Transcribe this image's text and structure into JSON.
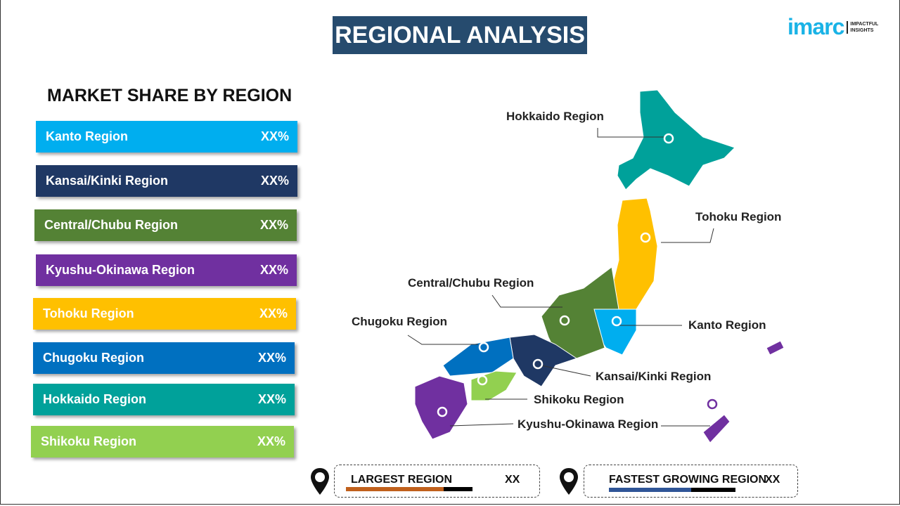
{
  "title": "REGIONAL ANALYSIS",
  "logo": {
    "brand": "imarc",
    "tagline": "IMPACTFUL INSIGHTS"
  },
  "subtitle": "MARKET SHARE BY REGION",
  "bars": [
    {
      "label": "Kanto Region",
      "value": "XX%",
      "color": "#00aeef"
    },
    {
      "label": "Kansai/Kinki Region",
      "value": "XX%",
      "color": "#1f3864"
    },
    {
      "label": "Central/Chubu Region",
      "value": "XX%",
      "color": "#548235"
    },
    {
      "label": "Kyushu-Okinawa Region",
      "value": "XX%",
      "color": "#7030a0"
    },
    {
      "label": "Tohoku Region",
      "value": "XX%",
      "color": "#ffc000"
    },
    {
      "label": "Chugoku Region",
      "value": "XX%",
      "color": "#0070c0"
    },
    {
      "label": "Hokkaido Region",
      "value": "XX%",
      "color": "#00a19a"
    },
    {
      "label": "Shikoku Region",
      "value": "XX%",
      "color": "#92d050"
    }
  ],
  "map_labels": {
    "hokkaido": "Hokkaido Region",
    "tohoku": "Tohoku Region",
    "central": "Central/Chubu Region",
    "chugoku": "Chugoku Region",
    "kanto": "Kanto Region",
    "kansai": "Kansai/Kinki Region",
    "shikoku": "Shikoku Region",
    "kyushu": "Kyushu-Okinawa Region"
  },
  "largest": {
    "label": "LARGEST REGION",
    "value": "XX",
    "color": "#c0601c"
  },
  "fastest": {
    "label": "FASTEST GROWING REGION",
    "value": "XX",
    "color": "#2f5597"
  }
}
